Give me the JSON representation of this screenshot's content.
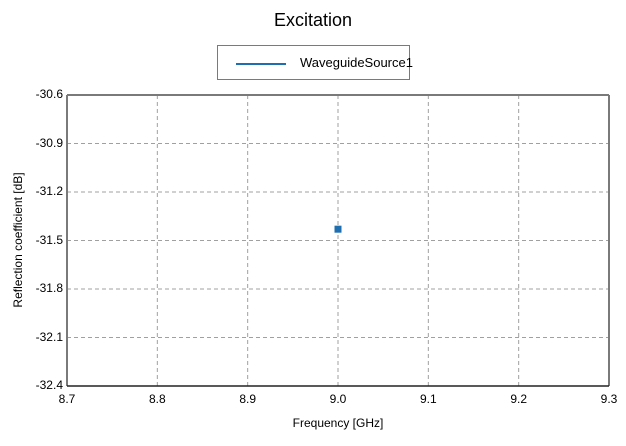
{
  "chart_data": {
    "type": "scatter",
    "title": "Excitation",
    "xlabel": "Frequency [GHz]",
    "ylabel": "Reflection coefficient [dB]",
    "xlim": [
      8.7,
      9.3
    ],
    "ylim": [
      -32.4,
      -30.6
    ],
    "xticks": [
      "8.7",
      "8.8",
      "8.9",
      "9.0",
      "9.1",
      "9.2",
      "9.3"
    ],
    "yticks": [
      "-30.6",
      "-30.9",
      "-31.2",
      "-31.5",
      "-31.8",
      "-32.1",
      "-32.4"
    ],
    "grid": true,
    "legend_position": "top-center",
    "series": [
      {
        "name": "WaveguideSource1",
        "color": "#1f6fb0",
        "x": [
          9.0
        ],
        "y": [
          -31.43
        ]
      }
    ]
  },
  "colors": {
    "series": "#1f6fb0",
    "grid": "#a0a0a0",
    "axis": "#7a7a7a"
  }
}
